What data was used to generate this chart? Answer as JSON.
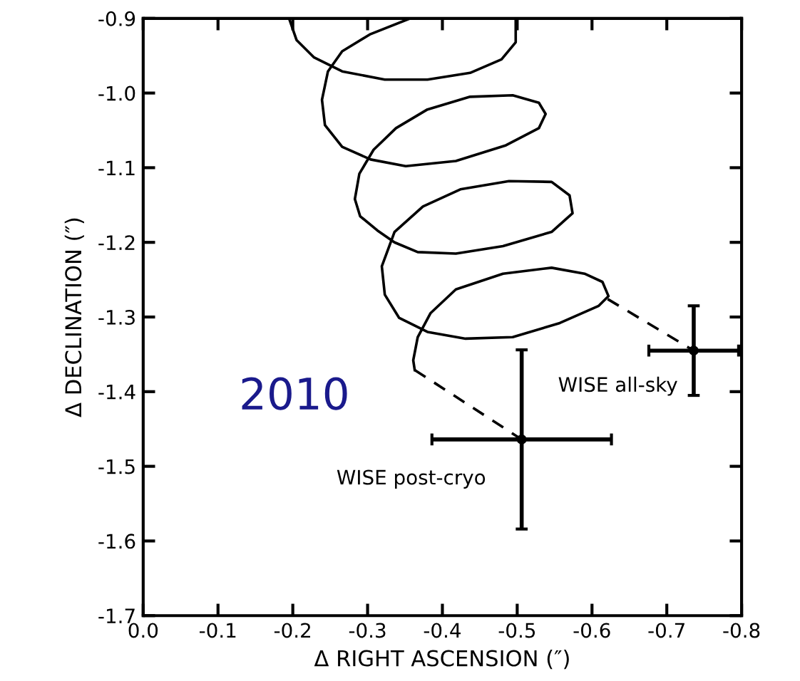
{
  "chart_data": {
    "type": "line",
    "xlabel": "Δ RIGHT ASCENSION (″)",
    "ylabel": "Δ DECLINATION (″)",
    "xlim": [
      0.0,
      -0.8
    ],
    "xticks": [
      {
        "value": 0,
        "label": "0.0"
      },
      -0.1,
      -0.2,
      -0.3,
      -0.4,
      -0.5,
      -0.6,
      -0.7,
      -0.8
    ],
    "ylim": [
      -1.7,
      -0.9
    ],
    "yticks": [
      -1.7,
      -1.6,
      -1.5,
      -1.4,
      -1.3,
      -1.2,
      -1.1,
      {
        "value": -1,
        "label": "-1.0"
      },
      -0.9
    ],
    "grid": false,
    "legend": false,
    "series": [
      {
        "color": "#000000",
        "line_style": "solid",
        "marker": "none",
        "x": [
          -0.195,
          -0.205,
          -0.228,
          -0.266,
          -0.323,
          -0.38,
          -0.437,
          -0.479,
          -0.498,
          -0.498,
          null,
          -0.357,
          -0.304,
          -0.266,
          -0.247,
          -0.239,
          -0.243,
          -0.266,
          -0.304,
          -0.351,
          -0.418,
          -0.485,
          -0.529,
          -0.538,
          -0.529,
          -0.494,
          -0.437,
          -0.38,
          -0.338,
          -0.308,
          -0.289,
          -0.283,
          -0.29,
          -0.313,
          -0.336,
          -0.367,
          -0.418,
          -0.481,
          -0.546,
          -0.574,
          -0.57,
          -0.546,
          -0.489,
          -0.424,
          -0.374,
          -0.336,
          -0.319,
          -0.323,
          -0.342,
          -0.38,
          -0.431,
          -0.494,
          -0.557,
          -0.609,
          -0.622,
          -0.614,
          -0.59,
          -0.546,
          -0.481,
          -0.418,
          -0.384,
          -0.367,
          -0.361,
          -0.363
        ],
        "values": [
          -0.9,
          -0.929,
          -0.952,
          -0.971,
          -0.982,
          -0.982,
          -0.973,
          -0.955,
          -0.932,
          -0.9,
          null,
          -0.9,
          -0.921,
          -0.944,
          -0.971,
          -1.009,
          -1.043,
          -1.072,
          -1.089,
          -1.098,
          -1.091,
          -1.07,
          -1.047,
          -1.028,
          -1.013,
          -1.003,
          -1.005,
          -1.022,
          -1.047,
          -1.076,
          -1.108,
          -1.142,
          -1.165,
          -1.184,
          -1.2,
          -1.213,
          -1.215,
          -1.205,
          -1.186,
          -1.161,
          -1.137,
          -1.119,
          -1.118,
          -1.129,
          -1.152,
          -1.186,
          -1.232,
          -1.27,
          -1.301,
          -1.32,
          -1.329,
          -1.327,
          -1.308,
          -1.285,
          -1.272,
          -1.253,
          -1.242,
          -1.234,
          -1.242,
          -1.263,
          -1.295,
          -1.327,
          -1.358,
          -1.371
        ]
      },
      {
        "type": "line",
        "color": "#000000",
        "line_style": "dashed",
        "marker": "none",
        "x": [
          -0.363,
          -0.506
        ],
        "values": [
          -1.371,
          -1.464
        ]
      },
      {
        "type": "line",
        "color": "#000000",
        "line_style": "dashed",
        "marker": "none",
        "x": [
          -0.621,
          -0.736
        ],
        "values": [
          -1.276,
          -1.345
        ]
      },
      {
        "type": "scatter",
        "color": "#000000",
        "marker": "circle",
        "x": [
          -0.736,
          -0.506
        ],
        "values": [
          -1.345,
          -1.464
        ],
        "xerrors": [
          0.06,
          0.12
        ],
        "errors": [
          0.06,
          0.12
        ]
      }
    ],
    "annotations": [
      {
        "text": "WISE all-sky",
        "x": -0.736,
        "y": -1.345
      },
      {
        "text": "WISE post-cryo",
        "x": -0.506,
        "y": -1.464
      },
      "2010"
    ]
  }
}
